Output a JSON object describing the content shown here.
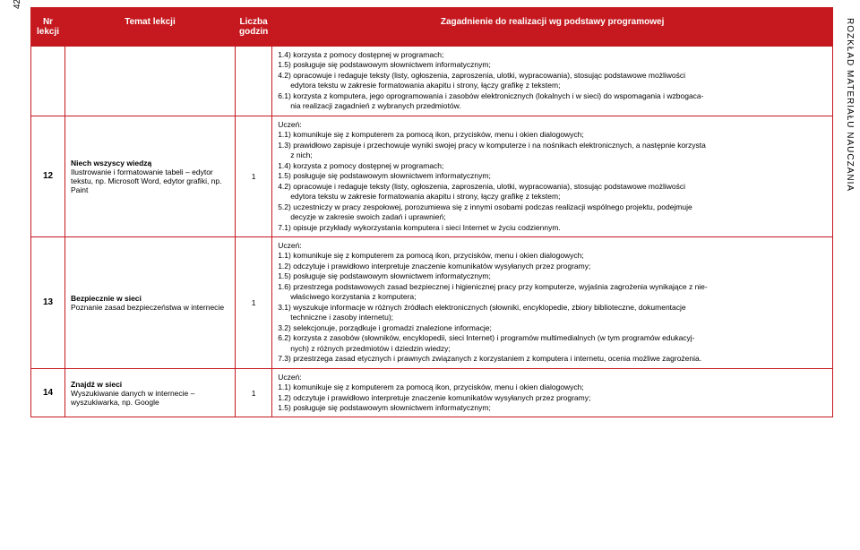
{
  "accent_color": "#c5191f",
  "page_number": "42",
  "side_title": "ROZKŁAD MATERIAŁU NAUCZANIA",
  "headers": {
    "nr": "Nr lekcji",
    "temat": "Temat lekcji",
    "godz": "Liczba godzin",
    "zag": "Zagadnienie do realizacji wg podstawy programowej"
  },
  "top_block": {
    "lines": [
      "1.4) korzysta z pomocy dostępnej w programach;",
      "1.5) posługuje się podstawowym słownictwem informatycznym;",
      "4.2) opracowuje i redaguje teksty (listy, ogłoszenia, zaproszenia, ulotki, wypracowania), stosując podstawowe możliwości",
      "edytora tekstu w zakresie formatowania akapitu i strony, łączy grafikę z tekstem;",
      "6.1) korzysta z komputera, jego oprogramowania i zasobów elektronicznych (lokalnych i w sieci) do wspomagania i wzbogaca-",
      "nia realizacji zagadnień z wybranych przedmiotów."
    ],
    "indent_flags": [
      false,
      false,
      false,
      true,
      false,
      true
    ]
  },
  "rows": [
    {
      "nr": "12",
      "godz": "1",
      "temat_title": "Niech wszyscy wiedzą",
      "temat_sub": "Ilustrowanie i formatowanie tabeli – edytor tekstu, np. Microsoft Word, edytor grafiki, np. Paint",
      "uczen": "Uczeń:",
      "lines": [
        "1.1) komunikuje się z komputerem za pomocą ikon, przycisków, menu i okien dialogowych;",
        "1.3) prawidłowo zapisuje i przechowuje wyniki swojej pracy w komputerze i na nośnikach elektronicznych, a następnie korzysta",
        "z nich;",
        "1.4) korzysta z pomocy dostępnej w programach;",
        "1.5) posługuje się podstawowym słownictwem informatycznym;",
        "4.2) opracowuje i redaguje teksty (listy, ogłoszenia, zaproszenia, ulotki, wypracowania), stosując podstawowe możliwości",
        "edytora tekstu w zakresie formatowania akapitu i strony, łączy grafikę z tekstem;",
        "5.2) uczestniczy w pracy zespołowej, porozumiewa się z innymi osobami podczas realizacji wspólnego projektu, podejmuje",
        "decyzje w zakresie swoich zadań i uprawnień;",
        "7.1) opisuje przykłady wykorzystania komputera i sieci Internet w życiu codziennym."
      ],
      "indent_flags": [
        false,
        false,
        true,
        false,
        false,
        false,
        true,
        false,
        true,
        false
      ]
    },
    {
      "nr": "13",
      "godz": "1",
      "temat_title": "Bezpiecznie w sieci",
      "temat_sub": "Poznanie zasad bezpieczeństwa w internecie",
      "uczen": "Uczeń:",
      "lines": [
        "1.1) komunikuje się z komputerem za pomocą ikon, przycisków, menu i okien dialogowych;",
        "1.2) odczytuje i prawidłowo interpretuje znaczenie komunikatów wysyłanych przez programy;",
        "1.5) posługuje się podstawowym słownictwem informatycznym;",
        "1.6) przestrzega podstawowych zasad bezpiecznej i higienicznej pracy przy komputerze, wyjaśnia zagrożenia wynikające z nie-",
        "właściwego korzystania z komputera;",
        "3.1) wyszukuje informacje w różnych źródłach elektronicznych (słowniki, encyklopedie, zbiory biblioteczne, dokumentacje",
        "techniczne i zasoby internetu);",
        "3.2) selekcjonuje, porządkuje i gromadzi znalezione informacje;",
        "6.2) korzysta z zasobów (słowników, encyklopedii, sieci Internet) i programów multimedialnych (w tym programów edukacyj-",
        "nych) z różnych przedmiotów i dziedzin wiedzy;",
        "7.3) przestrzega zasad etycznych i prawnych związanych z korzystaniem z komputera i internetu, ocenia możliwe zagrożenia."
      ],
      "indent_flags": [
        false,
        false,
        false,
        false,
        true,
        false,
        true,
        false,
        false,
        true,
        false
      ]
    },
    {
      "nr": "14",
      "godz": "1",
      "temat_title": "Znajdź w sieci",
      "temat_sub": "Wyszukiwanie danych w internecie – wyszukiwarka, np. Google",
      "uczen": "Uczeń:",
      "lines": [
        "1.1) komunikuje się z komputerem za pomocą ikon, przycisków, menu i okien dialogowych;",
        "1.2) odczytuje i prawidłowo interpretuje znaczenie komunikatów wysyłanych przez programy;",
        "1.5) posługuje się podstawowym słownictwem informatycznym;"
      ],
      "indent_flags": [
        false,
        false,
        false
      ]
    }
  ]
}
